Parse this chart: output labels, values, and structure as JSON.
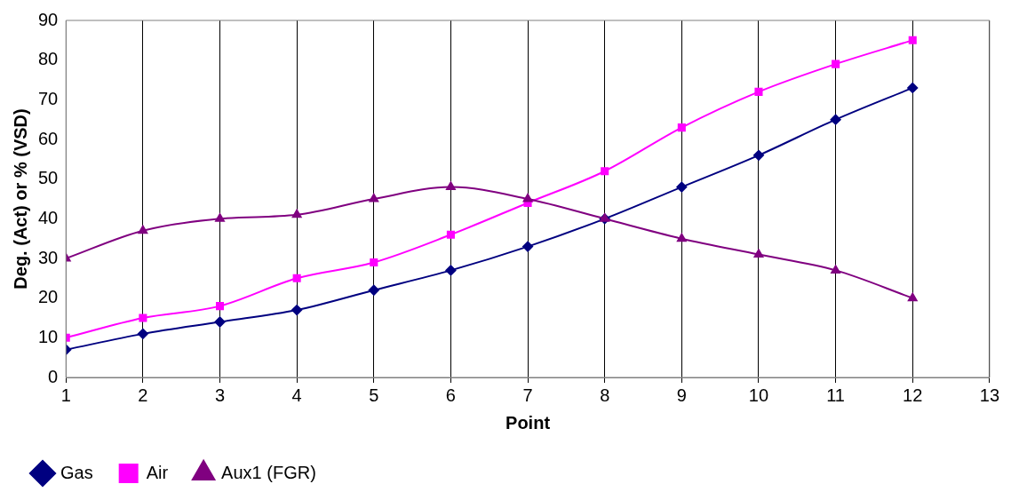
{
  "chart_data": {
    "type": "line",
    "xlabel": "Point",
    "ylabel": "Deg. (Act) or % (VSD)",
    "x": [
      1,
      2,
      3,
      4,
      5,
      6,
      7,
      8,
      9,
      10,
      11,
      12
    ],
    "xlim": [
      1,
      13
    ],
    "xticks": [
      1,
      2,
      3,
      4,
      5,
      6,
      7,
      8,
      9,
      10,
      11,
      12,
      13
    ],
    "ylim": [
      0,
      90
    ],
    "yticks": [
      0,
      10,
      20,
      30,
      40,
      50,
      60,
      70,
      80,
      90
    ],
    "grid": "x",
    "legend": "bottom left",
    "line_style": "solid",
    "series": [
      {
        "name": "Gas",
        "color": "#000080",
        "marker": "diamond",
        "values": [
          7,
          11,
          14,
          17,
          22,
          27,
          33,
          40,
          48,
          56,
          65,
          73
        ]
      },
      {
        "name": "Air",
        "color": "#ff00ff",
        "marker": "square",
        "values": [
          10,
          15,
          18,
          25,
          29,
          36,
          44,
          52,
          63,
          72,
          79,
          85
        ]
      },
      {
        "name": "Aux1 (FGR)",
        "color": "#800080",
        "marker": "triangle",
        "values": [
          30,
          37,
          40,
          41,
          45,
          48,
          45,
          40,
          35,
          31,
          27,
          20
        ]
      }
    ]
  }
}
